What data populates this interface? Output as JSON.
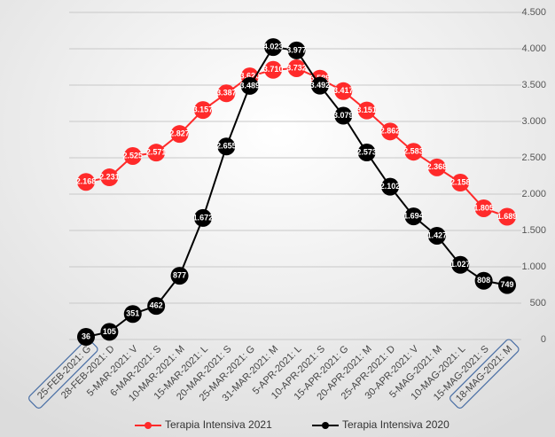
{
  "chart_data": {
    "type": "line",
    "categories": [
      "25-FEB-2021: G",
      "28-FEB-2021: D",
      "5-MAR-2021: V",
      "6-MAR-2021: S",
      "10-MAR-2021: M",
      "15-MAR-2021: L",
      "20-MAR-2021: S",
      "25-MAR-2021: G",
      "31-MAR-2021: M",
      "5-APR-2021: L",
      "10-APR-2021: S",
      "15-APR-2021: G",
      "20-APR-2021: M",
      "25-APR-2021: D",
      "30-APR-2021: V",
      "5-MAG-2021: M",
      "10-MAG-2021: L",
      "15-MAG-2021: S",
      "18-MAG-2021: M"
    ],
    "series": [
      {
        "name": "Terapia Intensiva 2021",
        "color": "#ff2a2a",
        "values": [
          2168,
          2231,
          2525,
          2571,
          2827,
          3157,
          3387,
          3620,
          3710,
          3732,
          3589,
          3417,
          3151,
          2862,
          2583,
          2368,
          2158,
          1805,
          1689
        ],
        "value_labels": [
          "2.168",
          "2.231",
          "2.525",
          "2.571",
          "2.827",
          "3.157",
          "3.387",
          "3.620",
          "3.710",
          "3.732",
          "3.589",
          "3.417",
          "3.151",
          "2.862",
          "2.583",
          "2.368",
          "2.158",
          "1.805",
          "1.689"
        ]
      },
      {
        "name": "Terapia Intensiva 2020",
        "color": "#000000",
        "values": [
          36,
          105,
          351,
          462,
          877,
          1672,
          2655,
          3489,
          4023,
          3977,
          3492,
          3079,
          2573,
          2102,
          1694,
          1427,
          1027,
          808,
          749
        ],
        "value_labels": [
          "36",
          "105",
          "351",
          "462",
          "877",
          "1.672",
          "2.655",
          "3.489",
          "4.023",
          "3.977",
          "3.492",
          "3.079",
          "2.573",
          "2.102",
          "1.694",
          "1.427",
          "1.027",
          "808",
          "749"
        ]
      }
    ],
    "ylim": [
      0,
      4500
    ],
    "yticks": [
      0,
      500,
      {
        "value": 1000,
        "label": "1.000"
      },
      {
        "value": 1500,
        "label": "1.500"
      },
      {
        "value": 2000,
        "label": "2.000"
      },
      {
        "value": 2500,
        "label": "2.500"
      },
      {
        "value": 3000,
        "label": "3.000"
      },
      {
        "value": 3500,
        "label": "3.500"
      },
      {
        "value": 4000,
        "label": "4.000"
      },
      {
        "value": 4500,
        "label": "4.500"
      }
    ],
    "grid": true
  }
}
